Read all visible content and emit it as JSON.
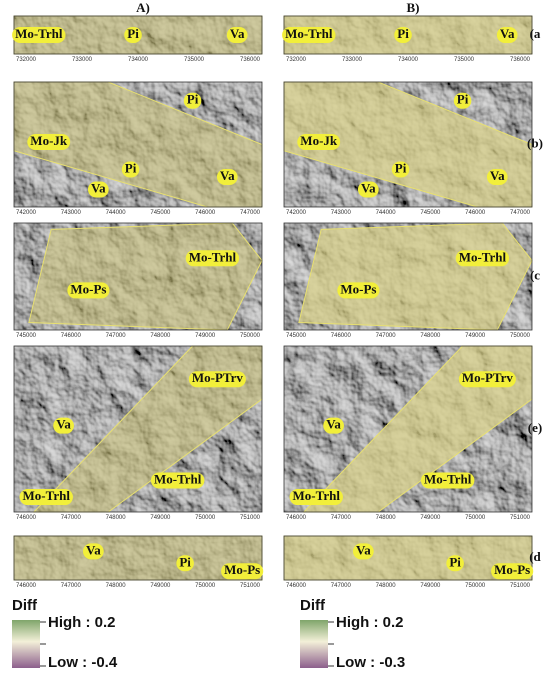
{
  "columns": [
    {
      "title": "A)",
      "panels": [
        {
          "labels": [
            "Mo-Trhl",
            "Pi",
            "Va"
          ],
          "x_ticks": [
            "732000",
            "733000",
            "734000",
            "735000",
            "736000"
          ]
        },
        {
          "labels": [
            "Pi",
            "Mo-Jk",
            "Pi",
            "Va",
            "Va"
          ],
          "x_ticks": [
            "742000",
            "743000",
            "744000",
            "745000",
            "746000",
            "747000"
          ]
        },
        {
          "labels": [
            "Mo-Trhl",
            "Mo-Ps"
          ],
          "x_ticks": [
            "745000",
            "746000",
            "747000",
            "748000",
            "749000",
            "750000"
          ]
        },
        {
          "labels": [
            "Mo-PTrv",
            "Va",
            "Mo-Trhl",
            "Mo-Trhl"
          ],
          "x_ticks": [
            "746000",
            "747000",
            "748000",
            "749000",
            "750000",
            "751000"
          ]
        },
        {
          "labels": [
            "Va",
            "Pi",
            "Mo-Ps"
          ],
          "x_ticks": [
            "746000",
            "747000",
            "748000",
            "749000",
            "750000",
            "751000"
          ]
        }
      ],
      "legend": {
        "title": "Diff",
        "high": "High : 0.2",
        "low": "Low : -0.4"
      }
    },
    {
      "title": "B)",
      "panels": [
        {
          "labels": [
            "Mo-Trhl",
            "Pi",
            "Va"
          ],
          "x_ticks": [
            "732000",
            "733000",
            "734000",
            "735000",
            "736000"
          ]
        },
        {
          "labels": [
            "Pi",
            "Mo-Jk",
            "Pi",
            "Va",
            "Va"
          ],
          "x_ticks": [
            "742000",
            "743000",
            "744000",
            "745000",
            "746000",
            "747000"
          ]
        },
        {
          "labels": [
            "Mo-Trhl",
            "Mo-Ps"
          ],
          "x_ticks": [
            "745000",
            "746000",
            "747000",
            "748000",
            "749000",
            "750000"
          ]
        },
        {
          "labels": [
            "Mo-PTrv",
            "Va",
            "Mo-Trhl",
            "Mo-Trhl"
          ],
          "x_ticks": [
            "746000",
            "747000",
            "748000",
            "749000",
            "750000",
            "751000"
          ]
        },
        {
          "labels": [
            "Va",
            "Pi",
            "Mo-Ps"
          ],
          "x_ticks": [
            "746000",
            "747000",
            "748000",
            "749000",
            "750000",
            "751000"
          ]
        }
      ],
      "legend": {
        "title": "Diff",
        "high": "High : 0.2",
        "low": "Low : -0.3"
      }
    }
  ],
  "row_labels": [
    "(a",
    "(b)",
    "(c",
    "(e)",
    "(d"
  ]
}
